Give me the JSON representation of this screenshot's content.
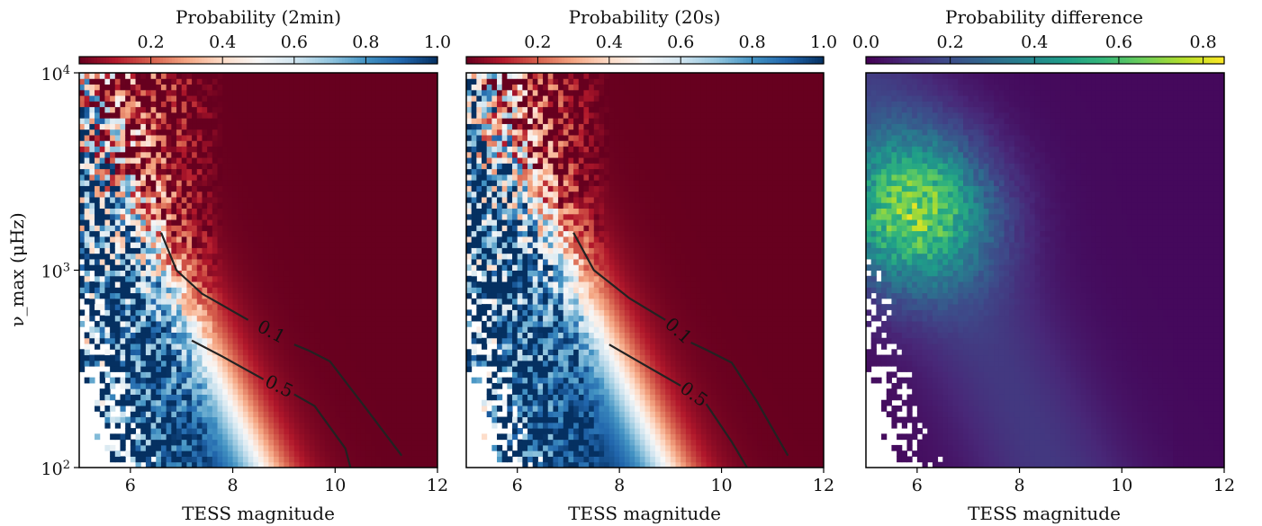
{
  "figure": {
    "y_axis_label": "ν_max (μHz)",
    "x_axis_label": "TESS magnitude"
  },
  "colors": {
    "rdbu": [
      "#67001f",
      "#b2182b",
      "#d6604d",
      "#f4a582",
      "#fddbc7",
      "#f7f7f7",
      "#d1e5f0",
      "#92c5de",
      "#4393c3",
      "#2166ac",
      "#053061"
    ],
    "viridis": [
      "#440154",
      "#482878",
      "#3e4989",
      "#31688e",
      "#26828e",
      "#1f9e89",
      "#35b779",
      "#6ece58",
      "#b5de2b",
      "#fde725"
    ],
    "contour_line": "#222222"
  },
  "chart_data": [
    {
      "type": "heatmap",
      "title": "Probability (2min)",
      "xlabel": "TESS magnitude",
      "ylabel": "ν_max (μHz)",
      "xlim": [
        5,
        12
      ],
      "ylim": [
        100,
        10000
      ],
      "yscale": "log",
      "xticks": [
        6,
        8,
        10,
        12
      ],
      "yticks": [
        {
          "value": 100,
          "base": "10",
          "exp": "2"
        },
        {
          "value": 1000,
          "base": "10",
          "exp": "3"
        },
        {
          "value": 10000,
          "base": "10",
          "exp": "4"
        }
      ],
      "colorbar": {
        "colormap": "RdBu",
        "vmin": 0,
        "vmax": 1,
        "ticks": [
          "0.2",
          "0.4",
          "0.6",
          "0.8",
          "1.0"
        ],
        "tick_values": [
          0.2,
          0.4,
          0.6,
          0.8,
          1.0
        ],
        "position": "top"
      },
      "contours": [
        {
          "level": "0.1",
          "points": [
            [
              6.6,
              1550
            ],
            [
              6.9,
              1000
            ],
            [
              7.4,
              760
            ],
            [
              8.3,
              560
            ],
            [
              9.2,
              420
            ],
            [
              9.5,
              390
            ],
            [
              9.9,
              345
            ],
            [
              10.6,
              200
            ],
            [
              11.3,
              115
            ]
          ]
        },
        {
          "level": "0.5",
          "points": [
            [
              7.2,
              440
            ],
            [
              7.8,
              365
            ],
            [
              8.6,
              280
            ],
            [
              9.2,
              235
            ],
            [
              9.6,
              205
            ],
            [
              10.2,
              125
            ],
            [
              10.3,
              100
            ]
          ]
        }
      ]
    },
    {
      "type": "heatmap",
      "title": "Probability (20s)",
      "xlabel": "TESS magnitude",
      "ylabel": "",
      "xlim": [
        5,
        12
      ],
      "ylim": [
        100,
        10000
      ],
      "yscale": "log",
      "xticks": [
        6,
        8,
        10,
        12
      ],
      "colorbar": {
        "colormap": "RdBu",
        "vmin": 0,
        "vmax": 1,
        "ticks": [
          "0.2",
          "0.4",
          "0.6",
          "0.8",
          "1.0"
        ],
        "tick_values": [
          0.2,
          0.4,
          0.6,
          0.8,
          1.0
        ],
        "position": "top"
      },
      "contours": [
        {
          "level": "0.1",
          "points": [
            [
              7.1,
              1550
            ],
            [
              7.5,
              1000
            ],
            [
              8.2,
              720
            ],
            [
              8.9,
              560
            ],
            [
              9.4,
              430
            ],
            [
              9.7,
              395
            ],
            [
              10.2,
              340
            ],
            [
              10.7,
              215
            ],
            [
              11.3,
              115
            ]
          ]
        },
        {
          "level": "0.5",
          "points": [
            [
              7.8,
              420
            ],
            [
              8.5,
              330
            ],
            [
              9.2,
              260
            ],
            [
              9.7,
              210
            ],
            [
              10.2,
              135
            ],
            [
              10.5,
              100
            ]
          ]
        }
      ]
    },
    {
      "type": "heatmap",
      "title": "Probability difference",
      "xlabel": "TESS magnitude",
      "ylabel": "",
      "xlim": [
        5,
        12
      ],
      "ylim": [
        100,
        10000
      ],
      "yscale": "log",
      "xticks": [
        6,
        8,
        10,
        12
      ],
      "colorbar": {
        "colormap": "viridis",
        "vmin": 0,
        "vmax": 0.85,
        "ticks": [
          "0.0",
          "0.2",
          "0.4",
          "0.6",
          "0.8"
        ],
        "tick_values": [
          0.0,
          0.2,
          0.4,
          0.6,
          0.8
        ],
        "position": "top"
      }
    }
  ]
}
